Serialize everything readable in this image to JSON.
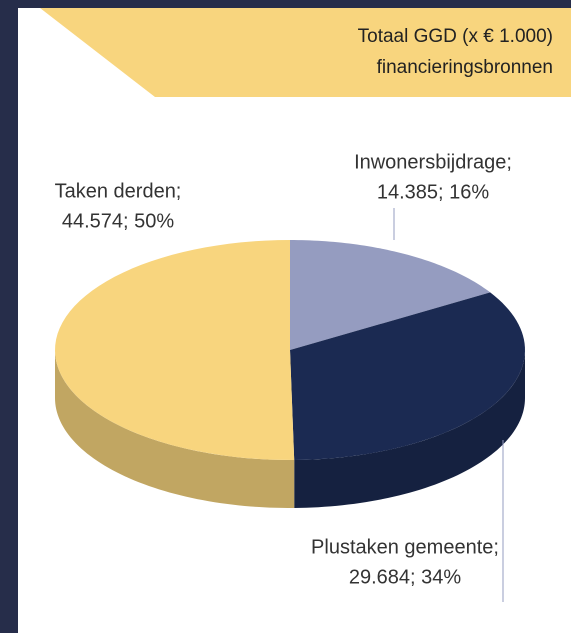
{
  "chart_data": {
    "type": "pie3d",
    "title": [
      "Totaal GGD (x € 1.000)",
      "financieringsbronnen"
    ],
    "categories": [
      "Inwonersbijdrage;",
      "Plustaken gemeente;",
      "Taken derden;"
    ],
    "values": [
      14385,
      29684,
      44574
    ],
    "value_labels": [
      "14.385; 16%",
      "29.684; 34%",
      "44.574; 50%"
    ],
    "colors": [
      "#959cc0",
      "#1b2a52",
      "#f8d57e"
    ]
  }
}
